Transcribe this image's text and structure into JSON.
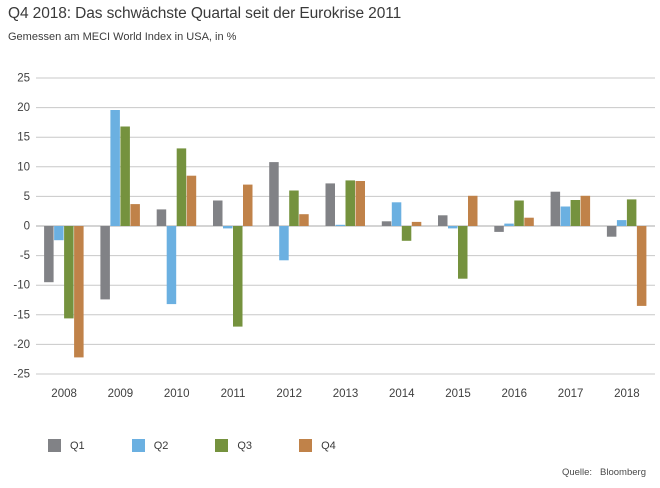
{
  "source": {
    "label": "Quelle:",
    "value": "Bloomberg"
  },
  "chart_data": {
    "type": "bar",
    "title": "Q4 2018: Das schwächste Quartal seit der Eurokrise 2011",
    "subtitle": "Gemessen am MECI World Index in USA, in %",
    "xlabel": "",
    "ylabel": "",
    "categories": [
      "2008",
      "2009",
      "2010",
      "2011",
      "2012",
      "2013",
      "2014",
      "2015",
      "2016",
      "2017",
      "2018"
    ],
    "series": [
      {
        "name": "Q1",
        "color": "#818286",
        "values": [
          -9.5,
          -12.4,
          2.8,
          4.3,
          10.8,
          7.2,
          0.8,
          1.8,
          -1.0,
          5.8,
          -1.8
        ]
      },
      {
        "name": "Q2",
        "color": "#6bb0e1",
        "values": [
          -2.4,
          19.6,
          -13.2,
          -0.4,
          -5.8,
          0.2,
          4.0,
          -0.4,
          0.4,
          3.3,
          1.0
        ]
      },
      {
        "name": "Q3",
        "color": "#75923e",
        "values": [
          -15.6,
          16.8,
          13.1,
          -17.0,
          6.0,
          7.7,
          -2.5,
          -8.9,
          4.3,
          4.4,
          4.5
        ]
      },
      {
        "name": "Q4",
        "color": "#c08249",
        "values": [
          -22.2,
          3.7,
          8.5,
          7.0,
          2.0,
          7.6,
          0.7,
          5.1,
          1.4,
          5.1,
          -13.5
        ]
      }
    ],
    "ylim": [
      -25,
      25
    ],
    "yticks": [
      25,
      20,
      15,
      10,
      5,
      0,
      -5,
      -10,
      -15,
      -20,
      -25
    ],
    "grid": true,
    "legend_position": "bottom",
    "style": {
      "grid_color": "#c8c8c8",
      "zero_line_color": "#a9a9a9",
      "axis_text_color": "#404040"
    }
  }
}
